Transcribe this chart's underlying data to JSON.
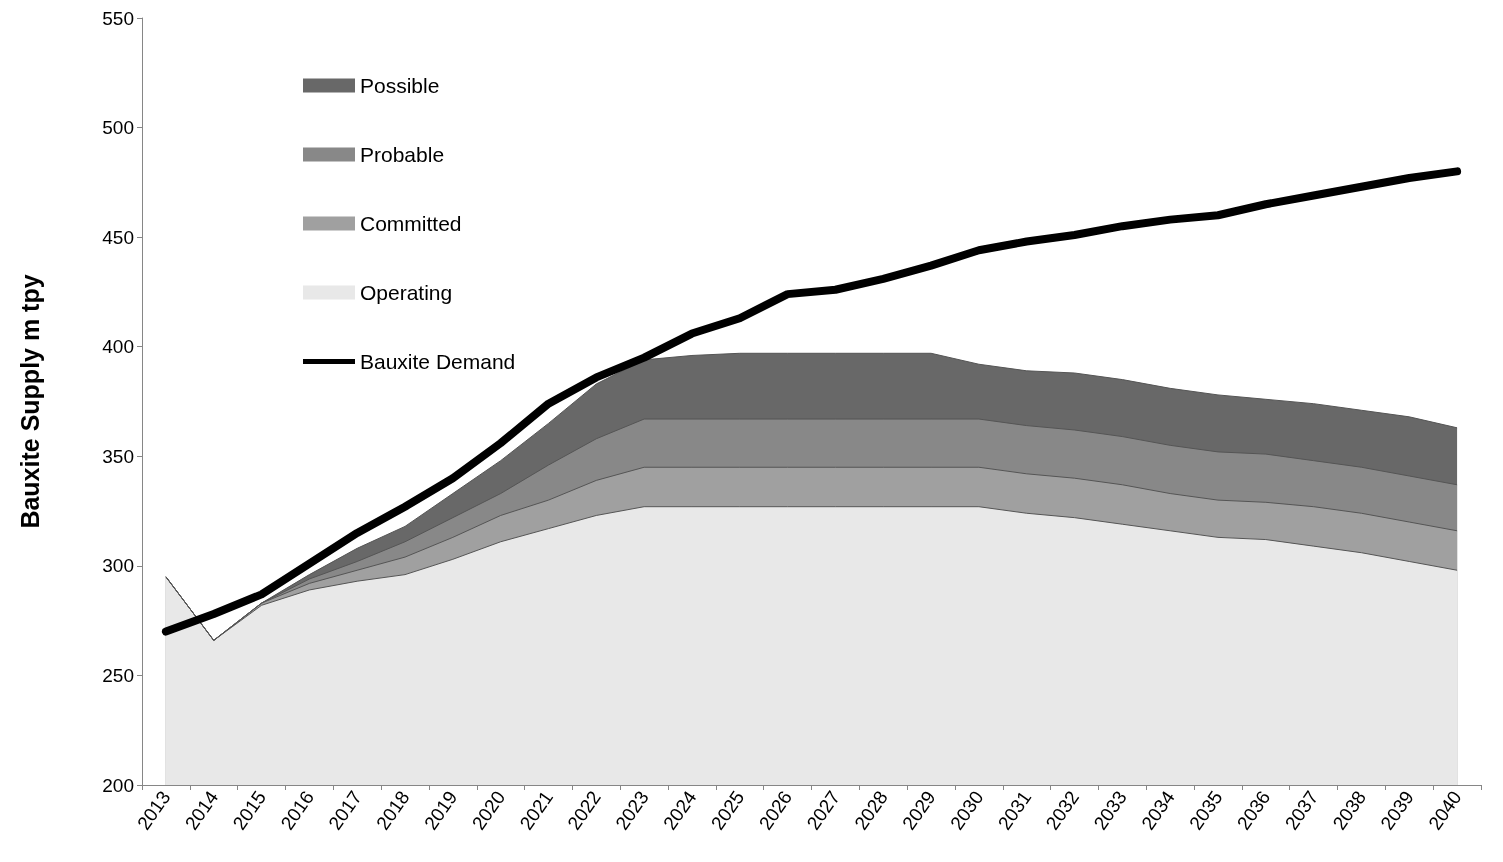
{
  "chart_data": {
    "type": "area",
    "ylabel": "Bauxite Supply m tpy",
    "legend": "top left",
    "grid": false,
    "marker": "none",
    "categories": [
      "2013",
      "2014",
      "2015",
      "2016",
      "2017",
      "2018",
      "2019",
      "2020",
      "2021",
      "2022",
      "2023",
      "2024",
      "2025",
      "2026",
      "2027",
      "2028",
      "2029",
      "2030",
      "2031",
      "2032",
      "2033",
      "2034",
      "2035",
      "2036",
      "2037",
      "2038",
      "2039",
      "2040"
    ],
    "ylim": [
      200,
      550
    ],
    "yticks": [
      200,
      250,
      300,
      350,
      400,
      450,
      500,
      550
    ],
    "series": [
      {
        "name": "Possible",
        "color": "#686868",
        "values": [
          295,
          266,
          283,
          296,
          308,
          318,
          333,
          348,
          365,
          383,
          394,
          396,
          397,
          397,
          397,
          397,
          397,
          392,
          389,
          388,
          385,
          381,
          378,
          376,
          374,
          371,
          368,
          363
        ]
      },
      {
        "name": "Probable",
        "color": "#888888",
        "values": [
          295,
          266,
          283,
          294,
          302,
          311,
          322,
          333,
          346,
          358,
          367,
          367,
          367,
          367,
          367,
          367,
          367,
          367,
          364,
          362,
          359,
          355,
          352,
          351,
          348,
          345,
          341,
          337
        ]
      },
      {
        "name": "Committed",
        "color": "#a0a0a0",
        "values": [
          295,
          266,
          283,
          292,
          298,
          304,
          313,
          323,
          330,
          339,
          345,
          345,
          345,
          345,
          345,
          345,
          345,
          345,
          342,
          340,
          337,
          333,
          330,
          329,
          327,
          324,
          320,
          316
        ]
      },
      {
        "name": "Operating",
        "color": "#e8e8e8",
        "values": [
          295,
          266,
          282,
          289,
          293,
          296,
          303,
          311,
          317,
          323,
          327,
          327,
          327,
          327,
          327,
          327,
          327,
          327,
          324,
          322,
          319,
          316,
          313,
          312,
          309,
          306,
          302,
          298
        ]
      },
      {
        "name": "Bauxite Demand",
        "type": "line",
        "color": "#000000",
        "values": [
          270,
          278,
          287,
          301,
          315,
          327,
          340,
          356,
          374,
          386,
          395,
          406,
          413,
          424,
          426,
          431,
          437,
          444,
          448,
          451,
          455,
          458,
          460,
          465,
          469,
          473,
          477,
          480
        ]
      }
    ]
  }
}
